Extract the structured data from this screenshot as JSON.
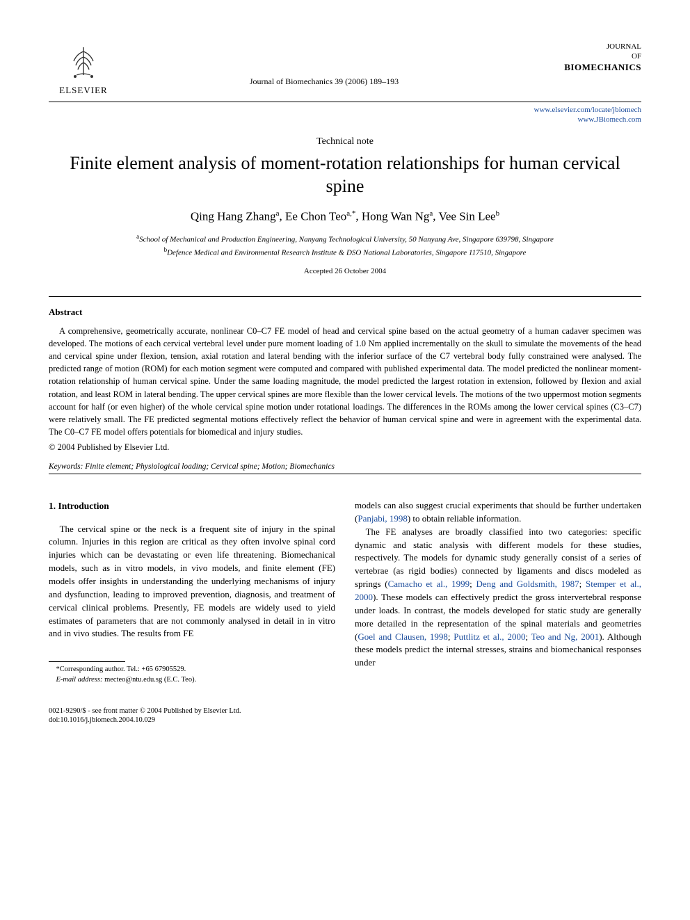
{
  "header": {
    "publisher_name": "ELSEVIER",
    "journal_reference": "Journal of Biomechanics 39 (2006) 189–193",
    "journal_line1": "JOURNAL",
    "journal_line2": "OF",
    "journal_line3": "BIOMECHANICS",
    "link1": "www.elsevier.com/locate/jbiomech",
    "link2": "www.JBiomech.com"
  },
  "article": {
    "type": "Technical note",
    "title": "Finite element analysis of moment-rotation relationships for human cervical spine",
    "authors_html": "Qing Hang Zhang<sup>a</sup>, Ee Chon Teo<sup>a,*</sup>, Hong Wan Ng<sup>a</sup>, Vee Sin Lee<sup>b</sup>",
    "affiliation_a": "School of Mechanical and Production Engineering, Nanyang Technological University, 50 Nanyang Ave, Singapore 639798, Singapore",
    "affiliation_b": "Defence Medical and Environmental Research Institute & DSO National Laboratories, Singapore 117510, Singapore",
    "accepted": "Accepted 26 October 2004"
  },
  "abstract": {
    "heading": "Abstract",
    "body": "A comprehensive, geometrically accurate, nonlinear C0–C7 FE model of head and cervical spine based on the actual geometry of a human cadaver specimen was developed. The motions of each cervical vertebral level under pure moment loading of 1.0 Nm applied incrementally on the skull to simulate the movements of the head and cervical spine under flexion, tension, axial rotation and lateral bending with the inferior surface of the C7 vertebral body fully constrained were analysed. The predicted range of motion (ROM) for each motion segment were computed and compared with published experimental data. The model predicted the nonlinear moment-rotation relationship of human cervical spine. Under the same loading magnitude, the model predicted the largest rotation in extension, followed by flexion and axial rotation, and least ROM in lateral bending. The upper cervical spines are more flexible than the lower cervical levels. The motions of the two uppermost motion segments account for half (or even higher) of the whole cervical spine motion under rotational loadings. The differences in the ROMs among the lower cervical spines (C3–C7) were relatively small. The FE predicted segmental motions effectively reflect the behavior of human cervical spine and were in agreement with the experimental data. The C0–C7 FE model offers potentials for biomedical and injury studies.",
    "copyright": "© 2004 Published by Elsevier Ltd.",
    "keywords_label": "Keywords:",
    "keywords": "Finite element; Physiological loading; Cervical spine; Motion; Biomechanics"
  },
  "body": {
    "section_heading": "1. Introduction",
    "col1_p1": "The cervical spine or the neck is a frequent site of injury in the spinal column. Injuries in this region are critical as they often involve spinal cord injuries which can be devastating or even life threatening. Biomechanical models, such as in vitro models, in vivo models, and finite element (FE) models offer insights in understanding the underlying mechanisms of injury and dysfunction, leading to improved prevention, diagnosis, and treatment of cervical clinical problems. Presently, FE models are widely used to yield estimates of parameters that are not commonly analysed in detail in in vitro and in vivo studies. The results from FE",
    "col2_p1_pre": "models can also suggest crucial experiments that should be further undertaken (",
    "col2_p1_cite1": "Panjabi, 1998",
    "col2_p1_post": ") to obtain reliable information.",
    "col2_p2_pre": "The FE analyses are broadly classified into two categories: specific dynamic and static analysis with different models for these studies, respectively. The models for dynamic study generally consist of a series of vertebrae (as rigid bodies) connected by ligaments and discs modeled as springs (",
    "col2_p2_cite1": "Camacho et al., 1999",
    "col2_p2_sep1": "; ",
    "col2_p2_cite2": "Deng and Goldsmith, 1987",
    "col2_p2_sep2": "; ",
    "col2_p2_cite3": "Stemper et al., 2000",
    "col2_p2_mid": "). These models can effectively predict the gross intervertebral response under loads. In contrast, the models developed for static study are generally more detailed in the representation of the spinal materials and geometries (",
    "col2_p2_cite4": "Goel and Clausen, 1998",
    "col2_p2_sep3": "; ",
    "col2_p2_cite5": "Puttlitz et al., 2000",
    "col2_p2_sep4": "; ",
    "col2_p2_cite6": "Teo and Ng, 2001",
    "col2_p2_post": "). Although these models predict the internal stresses, strains and biomechanical responses under"
  },
  "footnote": {
    "corr": "*Corresponding author. Tel.: +65 67905529.",
    "email_label": "E-mail address:",
    "email": "mecteo@ntu.edu.sg (E.C. Teo)."
  },
  "footer": {
    "line1": "0021-9290/$ - see front matter © 2004 Published by Elsevier Ltd.",
    "line2": "doi:10.1016/j.jbiomech.2004.10.029"
  },
  "colors": {
    "link": "#1a4b9b",
    "text": "#000000",
    "background": "#ffffff",
    "logo_orange": "#e87a26"
  }
}
